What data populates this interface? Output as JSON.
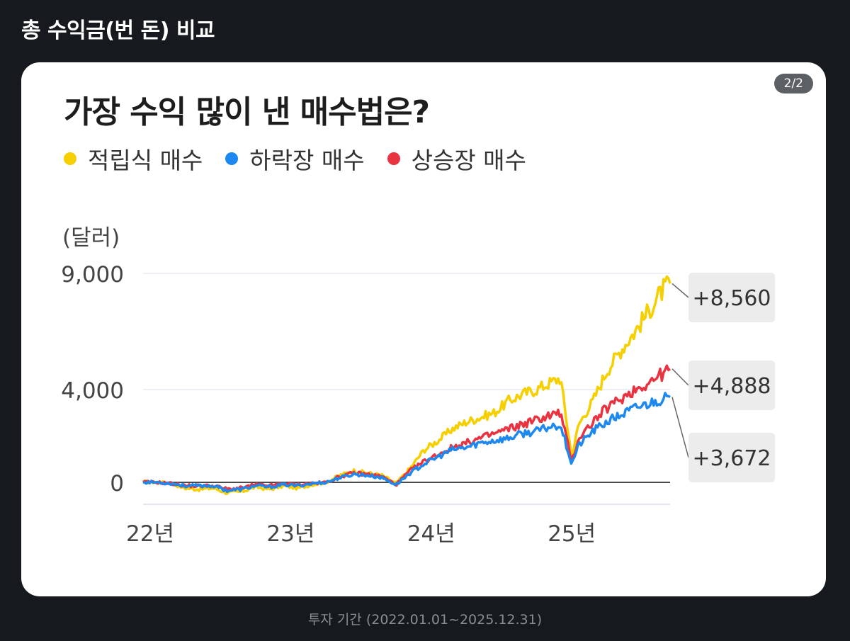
{
  "page": {
    "header": "총 수익금(번 돈) 비교",
    "badge": "2/2",
    "caption": "투자 기간 (2022.01.01~2025.12.31)"
  },
  "chart_data": {
    "type": "line",
    "title": "가장 수익 많이 낸 매수법은?",
    "ylabel": "(달러)",
    "xlabel": "",
    "ylim": [
      -1000,
      9300
    ],
    "xlim": [
      2022.0,
      2025.75
    ],
    "yticks": [
      {
        "value": 9000,
        "label": "9,000"
      },
      {
        "value": 4000,
        "label": "4,000"
      },
      {
        "value": 0,
        "label": "0"
      }
    ],
    "xticks": [
      {
        "value": 2022.0,
        "label": "22년"
      },
      {
        "value": 2023.0,
        "label": "23년"
      },
      {
        "value": 2024.0,
        "label": "24년"
      },
      {
        "value": 2025.0,
        "label": "25년"
      }
    ],
    "grid": "horizontal",
    "legend_position": "top-left",
    "series": [
      {
        "name": "적립식 매수",
        "color": "#f5cf00",
        "end_label": "+8,560",
        "x": [
          2022.0,
          2022.1,
          2022.2,
          2022.3,
          2022.4,
          2022.5,
          2022.6,
          2022.7,
          2022.8,
          2022.9,
          2023.0,
          2023.1,
          2023.2,
          2023.3,
          2023.4,
          2023.5,
          2023.6,
          2023.7,
          2023.8,
          2023.9,
          2024.0,
          2024.1,
          2024.2,
          2024.3,
          2024.4,
          2024.5,
          2024.6,
          2024.7,
          2024.8,
          2024.9,
          2024.97,
          2025.05,
          2025.1,
          2025.2,
          2025.3,
          2025.4,
          2025.5,
          2025.6,
          2025.7,
          2025.75
        ],
        "values": [
          20,
          10,
          -50,
          -250,
          -300,
          -250,
          -450,
          -400,
          -200,
          -300,
          -150,
          -250,
          -100,
          0,
          300,
          500,
          400,
          300,
          -50,
          600,
          1400,
          1800,
          2300,
          2600,
          2800,
          3000,
          3500,
          3800,
          4000,
          4300,
          4500,
          1100,
          2500,
          3500,
          4800,
          5700,
          6500,
          7400,
          8300,
          8560
        ]
      },
      {
        "name": "하락장 매수",
        "color": "#1d88f0",
        "end_label": "+3,672",
        "x": [
          2022.0,
          2022.1,
          2022.2,
          2022.3,
          2022.4,
          2022.5,
          2022.6,
          2022.7,
          2022.8,
          2022.9,
          2023.0,
          2023.1,
          2023.2,
          2023.3,
          2023.4,
          2023.5,
          2023.6,
          2023.7,
          2023.8,
          2023.9,
          2024.0,
          2024.1,
          2024.2,
          2024.3,
          2024.4,
          2024.5,
          2024.6,
          2024.7,
          2024.8,
          2024.9,
          2024.97,
          2025.05,
          2025.1,
          2025.2,
          2025.3,
          2025.4,
          2025.5,
          2025.6,
          2025.7,
          2025.75
        ],
        "values": [
          10,
          0,
          -50,
          -150,
          -150,
          -150,
          -350,
          -300,
          -150,
          -200,
          -100,
          -150,
          -50,
          0,
          200,
          350,
          300,
          200,
          -100,
          400,
          800,
          1100,
          1400,
          1500,
          1700,
          1800,
          1900,
          2100,
          2200,
          2400,
          2500,
          800,
          1600,
          2200,
          2600,
          2900,
          3200,
          3400,
          3600,
          3672
        ]
      },
      {
        "name": "상승장 매수",
        "color": "#ea3340",
        "end_label": "+4,888",
        "x": [
          2022.0,
          2022.1,
          2022.2,
          2022.3,
          2022.4,
          2022.5,
          2022.6,
          2022.7,
          2022.8,
          2022.9,
          2023.0,
          2023.1,
          2023.2,
          2023.3,
          2023.4,
          2023.5,
          2023.6,
          2023.7,
          2023.8,
          2023.9,
          2024.0,
          2024.1,
          2024.2,
          2024.3,
          2024.4,
          2024.5,
          2024.6,
          2024.7,
          2024.8,
          2024.9,
          2024.97,
          2025.05,
          2025.1,
          2025.2,
          2025.3,
          2025.4,
          2025.5,
          2025.6,
          2025.7,
          2025.75
        ],
        "values": [
          10,
          0,
          -50,
          -150,
          -150,
          -150,
          -300,
          -250,
          -100,
          -150,
          -50,
          -100,
          -50,
          0,
          250,
          400,
          350,
          250,
          -100,
          500,
          900,
          1200,
          1500,
          1700,
          1900,
          2100,
          2300,
          2500,
          2700,
          2900,
          3000,
          900,
          1900,
          2600,
          3200,
          3600,
          4000,
          4300,
          4700,
          4888
        ]
      }
    ]
  }
}
